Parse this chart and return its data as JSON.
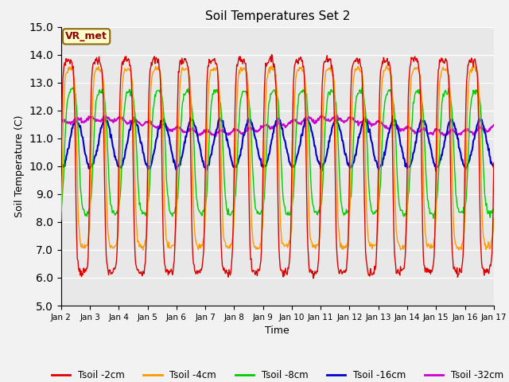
{
  "title": "Soil Temperatures Set 2",
  "xlabel": "Time",
  "ylabel": "Soil Temperature (C)",
  "ylim": [
    5.0,
    15.0
  ],
  "yticks": [
    5.0,
    6.0,
    7.0,
    8.0,
    9.0,
    10.0,
    11.0,
    12.0,
    13.0,
    14.0,
    15.0
  ],
  "bg_color": "#e8e8e8",
  "fig_bg_color": "#f2f2f2",
  "annotation": "VR_met",
  "legend_labels": [
    "Tsoil -2cm",
    "Tsoil -4cm",
    "Tsoil -8cm",
    "Tsoil -16cm",
    "Tsoil -32cm"
  ],
  "line_colors": [
    "#dd0000",
    "#ff9900",
    "#00cc00",
    "#0000cc",
    "#cc00cc"
  ],
  "line_widths": [
    1.0,
    1.0,
    1.0,
    1.5,
    1.5
  ],
  "days": [
    "Jan 2",
    "Jan 3",
    "Jan 4",
    "Jan 5",
    "Jan 6",
    "Jan 7",
    "Jan 8",
    "Jan 9",
    "Jan 10",
    "Jan 11",
    "Jan 12",
    "Jan 13",
    "Jan 14",
    "Jan 15",
    "Jan 16",
    "Jan 17"
  ]
}
